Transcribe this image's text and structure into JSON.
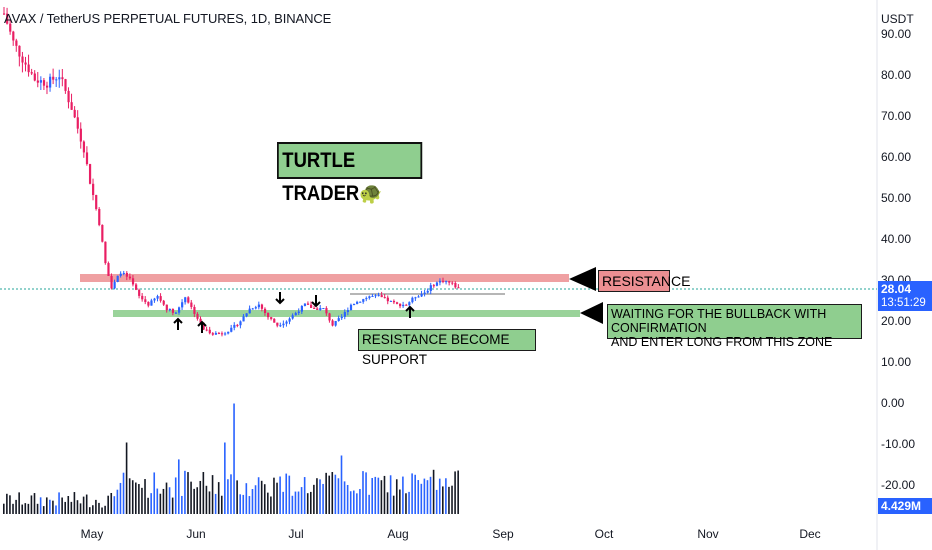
{
  "header": {
    "title": "AVAX / TetherUS PERPETUAL FUTURES, 1D, BINANCE"
  },
  "price_axis": {
    "unit": "USDT",
    "ticks": [
      "90.00",
      "80.00",
      "70.00",
      "60.00",
      "50.00",
      "40.00",
      "30.00",
      "20.00",
      "10.00",
      "0.00",
      "-10.00",
      "-20.00"
    ],
    "last_price": "28.04",
    "countdown": "13:51:29",
    "volume_value": "4.429M"
  },
  "colors": {
    "up": "#2962ff",
    "down": "#e91e63",
    "resistance": "#ec8f92",
    "support": "#8fce8f"
  },
  "annotations": {
    "turtle": "TURTLE TRADER",
    "turtle_icon": "turtle-icon",
    "resistance": "RESISTANCE",
    "waiting_line1": "WAITING FOR THE BULLBACK WITH CONFIRMATION",
    "waiting_line2": "AND ENTER LONG FROM THIS ZONE",
    "resistance_support": "RESISTANCE BECOME SUPPORT"
  },
  "chart_data": {
    "type": "candlestick",
    "symbol": "AVAX / TetherUS PERPETUAL FUTURES",
    "interval": "1D",
    "x_tick_labels": [
      "May",
      "Jun",
      "Jul",
      "Aug",
      "Sep",
      "Oct",
      "Nov",
      "Dec"
    ],
    "y_range": [
      -25,
      95
    ],
    "resistance_zone": [
      29.5,
      31.0
    ],
    "support_zone": [
      21.5,
      22.8
    ],
    "last_price": 28.04,
    "price_path": [
      [
        0,
        95
      ],
      [
        3,
        88
      ],
      [
        6,
        84
      ],
      [
        10,
        79
      ],
      [
        14,
        78
      ],
      [
        18,
        80
      ],
      [
        22,
        72
      ],
      [
        26,
        62
      ],
      [
        28,
        54
      ],
      [
        31,
        44
      ],
      [
        33,
        34
      ],
      [
        35,
        28
      ],
      [
        38,
        32
      ],
      [
        41,
        30
      ],
      [
        44,
        26
      ],
      [
        47,
        24
      ],
      [
        50,
        26
      ],
      [
        53,
        23
      ],
      [
        56,
        22
      ],
      [
        59,
        26
      ],
      [
        62,
        22
      ],
      [
        65,
        18
      ],
      [
        68,
        17
      ],
      [
        71,
        17
      ],
      [
        74,
        18
      ],
      [
        77,
        20
      ],
      [
        80,
        23
      ],
      [
        83,
        24
      ],
      [
        86,
        21
      ],
      [
        89,
        19
      ],
      [
        92,
        20
      ],
      [
        95,
        22
      ],
      [
        98,
        24
      ],
      [
        101,
        23
      ],
      [
        104,
        23
      ],
      [
        107,
        19
      ],
      [
        110,
        21
      ],
      [
        113,
        24
      ],
      [
        116,
        25
      ],
      [
        119,
        26
      ],
      [
        122,
        26
      ],
      [
        125,
        25
      ],
      [
        128,
        24
      ],
      [
        131,
        24
      ],
      [
        134,
        26
      ],
      [
        137,
        27
      ],
      [
        140,
        29
      ],
      [
        143,
        30
      ],
      [
        146,
        29
      ],
      [
        148,
        28
      ]
    ],
    "volume_spikes": [
      {
        "day": 40,
        "value": 0.55
      },
      {
        "day": 57,
        "value": 0.42
      },
      {
        "day": 75,
        "value": 0.85
      },
      {
        "day": 72,
        "value": 0.55
      },
      {
        "day": 110,
        "value": 0.45
      },
      {
        "day": 140,
        "value": 0.34
      }
    ]
  }
}
